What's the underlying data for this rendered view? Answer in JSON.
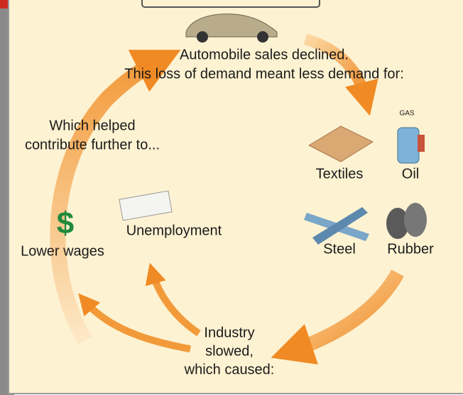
{
  "top": {
    "lines": [
      "Automobile sales declined.",
      "This loss of demand meant less demand for:"
    ]
  },
  "goods": [
    "Textiles",
    "Oil",
    "Steel",
    "Rubber"
  ],
  "gas_label": "GAS",
  "industry": {
    "lines": [
      "Industry",
      "slowed,",
      "which caused:"
    ]
  },
  "effects": [
    "Unemployment",
    "Lower wages"
  ],
  "feedback": {
    "lines": [
      "Which helped",
      "contribute further to..."
    ]
  }
}
